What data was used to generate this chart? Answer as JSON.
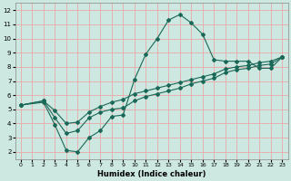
{
  "xlabel": "Humidex (Indice chaleur)",
  "bg_color": "#cce8e0",
  "grid_color": "#e8a8a8",
  "line_color": "#1a6858",
  "xlim": [
    -0.5,
    23.5
  ],
  "ylim": [
    1.5,
    12.5
  ],
  "xticks": [
    0,
    1,
    2,
    3,
    4,
    5,
    6,
    7,
    8,
    9,
    10,
    11,
    12,
    13,
    14,
    15,
    16,
    17,
    18,
    19,
    20,
    21,
    22,
    23
  ],
  "yticks": [
    2,
    3,
    4,
    5,
    6,
    7,
    8,
    9,
    10,
    11,
    12
  ],
  "series1_x": [
    0,
    2,
    3,
    4,
    5,
    6,
    7,
    8,
    9,
    10,
    11,
    12,
    13,
    14,
    15,
    16,
    17,
    18,
    19,
    20,
    21,
    22,
    23
  ],
  "series1_y": [
    5.3,
    5.5,
    3.9,
    2.1,
    2.0,
    3.0,
    3.5,
    4.5,
    4.6,
    7.1,
    8.9,
    10.0,
    11.3,
    11.7,
    11.1,
    10.3,
    8.5,
    8.4,
    8.4,
    8.4,
    7.9,
    7.9,
    8.7
  ],
  "series2_x": [
    0,
    2,
    3,
    4,
    5,
    6,
    7,
    8,
    9,
    10,
    11,
    12,
    13,
    14,
    15,
    16,
    17,
    18,
    19,
    20,
    21,
    22,
    23
  ],
  "series2_y": [
    5.3,
    5.6,
    4.4,
    3.3,
    3.5,
    4.4,
    4.8,
    5.0,
    5.1,
    5.6,
    5.9,
    6.1,
    6.3,
    6.5,
    6.8,
    7.0,
    7.2,
    7.6,
    7.8,
    7.9,
    8.1,
    8.2,
    8.7
  ],
  "series3_x": [
    0,
    2,
    3,
    4,
    5,
    6,
    7,
    8,
    9,
    10,
    11,
    12,
    13,
    14,
    15,
    16,
    17,
    18,
    19,
    20,
    21,
    22,
    23
  ],
  "series3_y": [
    5.3,
    5.6,
    4.9,
    4.0,
    4.1,
    4.8,
    5.2,
    5.5,
    5.7,
    6.1,
    6.3,
    6.5,
    6.7,
    6.9,
    7.1,
    7.3,
    7.5,
    7.85,
    8.0,
    8.1,
    8.3,
    8.4,
    8.7
  ]
}
